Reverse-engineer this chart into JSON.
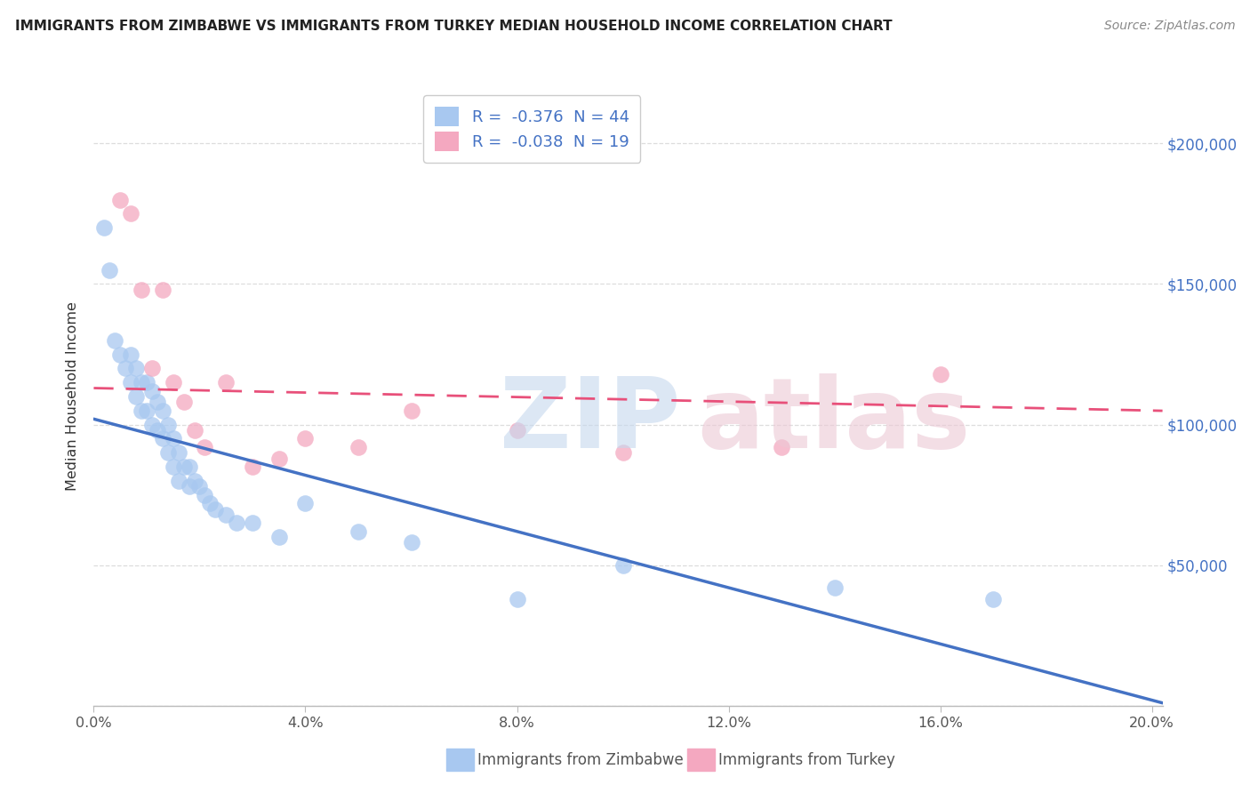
{
  "title": "IMMIGRANTS FROM ZIMBABWE VS IMMIGRANTS FROM TURKEY MEDIAN HOUSEHOLD INCOME CORRELATION CHART",
  "source": "Source: ZipAtlas.com",
  "ylabel": "Median Household Income",
  "legend_label1": "Immigrants from Zimbabwe",
  "legend_label2": "Immigrants from Turkey",
  "xlim": [
    0.0,
    0.202
  ],
  "ylim": [
    0,
    220000
  ],
  "yticks": [
    0,
    50000,
    100000,
    150000,
    200000
  ],
  "ytick_labels": [
    "",
    "$50,000",
    "$100,000",
    "$150,000",
    "$200,000"
  ],
  "xticks": [
    0.0,
    0.04,
    0.08,
    0.12,
    0.16,
    0.2
  ],
  "xtick_labels": [
    "0.0%",
    "4.0%",
    "8.0%",
    "12.0%",
    "16.0%",
    "20.0%"
  ],
  "blue_dot_color": "#A8C8F0",
  "pink_dot_color": "#F4A8C0",
  "blue_line_color": "#4472C4",
  "pink_line_color": "#E8507A",
  "grid_color": "#DDDDDD",
  "title_color": "#222222",
  "source_color": "#888888",
  "axis_label_color": "#555555",
  "right_tick_color": "#4472C4",
  "zimbabwe_x": [
    0.002,
    0.003,
    0.004,
    0.005,
    0.006,
    0.007,
    0.007,
    0.008,
    0.008,
    0.009,
    0.009,
    0.01,
    0.01,
    0.011,
    0.011,
    0.012,
    0.012,
    0.013,
    0.013,
    0.014,
    0.014,
    0.015,
    0.015,
    0.016,
    0.016,
    0.017,
    0.018,
    0.018,
    0.019,
    0.02,
    0.021,
    0.022,
    0.023,
    0.025,
    0.027,
    0.03,
    0.035,
    0.04,
    0.05,
    0.06,
    0.08,
    0.1,
    0.14,
    0.17
  ],
  "zimbabwe_y": [
    170000,
    155000,
    130000,
    125000,
    120000,
    125000,
    115000,
    120000,
    110000,
    115000,
    105000,
    115000,
    105000,
    112000,
    100000,
    108000,
    98000,
    105000,
    95000,
    100000,
    90000,
    95000,
    85000,
    90000,
    80000,
    85000,
    85000,
    78000,
    80000,
    78000,
    75000,
    72000,
    70000,
    68000,
    65000,
    65000,
    60000,
    72000,
    62000,
    58000,
    38000,
    50000,
    42000,
    38000
  ],
  "turkey_x": [
    0.005,
    0.007,
    0.009,
    0.011,
    0.013,
    0.015,
    0.017,
    0.019,
    0.021,
    0.025,
    0.03,
    0.035,
    0.04,
    0.05,
    0.06,
    0.08,
    0.1,
    0.13,
    0.16
  ],
  "turkey_y": [
    180000,
    175000,
    148000,
    120000,
    148000,
    115000,
    108000,
    98000,
    92000,
    115000,
    85000,
    88000,
    95000,
    92000,
    105000,
    98000,
    90000,
    92000,
    118000
  ],
  "r_zimbabwe": -0.376,
  "n_zimbabwe": 44,
  "r_turkey": -0.038,
  "n_turkey": 19,
  "blue_intercept": 102000,
  "blue_slope": -500000,
  "pink_intercept": 113000,
  "pink_slope": -40000
}
